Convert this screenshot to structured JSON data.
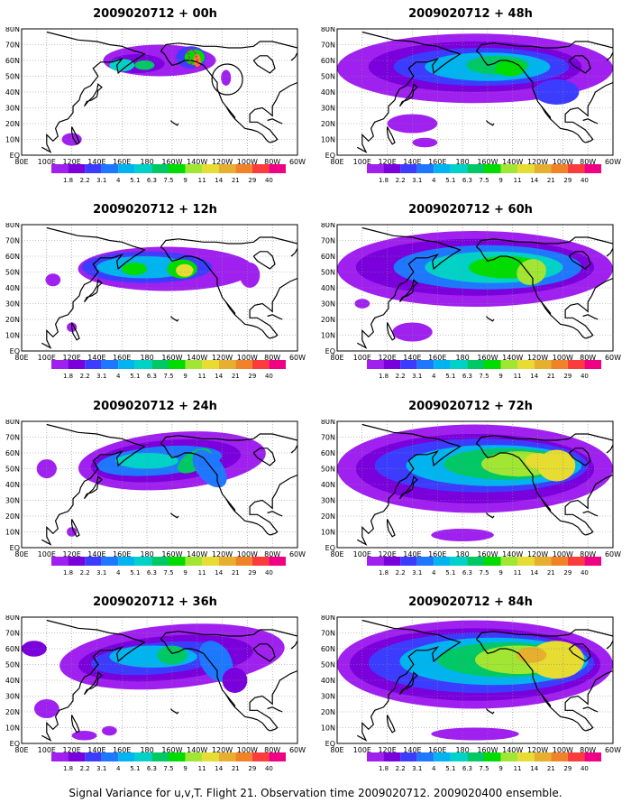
{
  "panels": [
    {
      "title": "2009020712 + 00h",
      "lead": 0
    },
    {
      "title": "2009020712 + 48h",
      "lead": 48
    },
    {
      "title": "2009020712 + 12h",
      "lead": 12
    },
    {
      "title": "2009020712 + 60h",
      "lead": 60
    },
    {
      "title": "2009020712 + 24h",
      "lead": 24
    },
    {
      "title": "2009020712 + 72h",
      "lead": 72
    },
    {
      "title": "2009020712 + 36h",
      "lead": 36
    },
    {
      "title": "2009020712 + 84h",
      "lead": 84
    }
  ],
  "axes": {
    "lat_labels": [
      "80N",
      "70N",
      "60N",
      "50N",
      "40N",
      "30N",
      "20N",
      "10N",
      "EQ"
    ],
    "lon_labels": [
      "80E",
      "100E",
      "120E",
      "140E",
      "160E",
      "180",
      "160W",
      "140W",
      "120W",
      "100W",
      "80W",
      "60W"
    ]
  },
  "colorbar": {
    "levels": [
      "1.8",
      "2.2",
      "3.1",
      "4",
      "5.1",
      "6.3",
      "7.5",
      "9",
      "11",
      "14",
      "21",
      "29",
      "40"
    ],
    "colors": [
      "#a020f0",
      "#7a00dc",
      "#3c3cff",
      "#1e78ff",
      "#00b4f0",
      "#00d2c8",
      "#00c864",
      "#00dc00",
      "#a0e632",
      "#e6dc32",
      "#e6af2d",
      "#f08228",
      "#fa3c3c",
      "#f00082"
    ]
  },
  "footer": "Signal Variance for u,v,T. Flight 21. Observation time 2009020712. 2009020400 ensemble."
}
